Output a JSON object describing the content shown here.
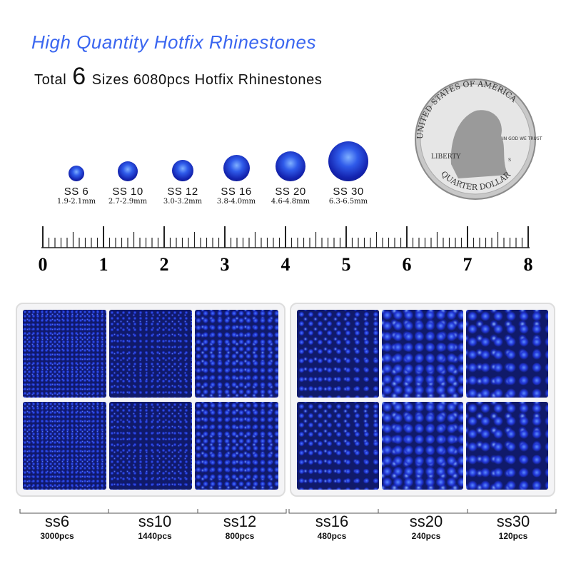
{
  "header": {
    "title": "High Quantity Hotfix Rhinestones",
    "subtitle_prefix": "Total",
    "subtitle_number": "6",
    "subtitle_suffix": "Sizes 6080pcs Hotfix Rhinestones"
  },
  "sizes": [
    {
      "name": "SS 6",
      "mm": "1.9-2.1mm"
    },
    {
      "name": "SS 10",
      "mm": "2.7-2.9mm"
    },
    {
      "name": "SS 12",
      "mm": "3.0-3.2mm"
    },
    {
      "name": "SS 16",
      "mm": "3.8-4.0mm"
    },
    {
      "name": "SS 20",
      "mm": "4.6-4.8mm"
    },
    {
      "name": "SS 30",
      "mm": "6.3-6.5mm"
    }
  ],
  "ruler": {
    "labels": [
      "0",
      "1",
      "2",
      "3",
      "4",
      "5",
      "6",
      "7",
      "8"
    ]
  },
  "coin": {
    "top": "UNITED STATES OF AMERICA",
    "liberty": "LIBERTY",
    "motto": "IN GOD WE TRUST",
    "mint": "S",
    "bottom": "QUARTER DOLLAR"
  },
  "counts": [
    {
      "name": "ss6",
      "pcs": "3000pcs"
    },
    {
      "name": "ss10",
      "pcs": "1440pcs"
    },
    {
      "name": "ss12",
      "pcs": "800pcs"
    },
    {
      "name": "ss16",
      "pcs": "480pcs"
    },
    {
      "name": "ss20",
      "pcs": "240pcs"
    },
    {
      "name": "ss30",
      "pcs": "120pcs"
    }
  ],
  "colors": {
    "accent": "#3a66f0",
    "stone": "#1d2fc7"
  }
}
